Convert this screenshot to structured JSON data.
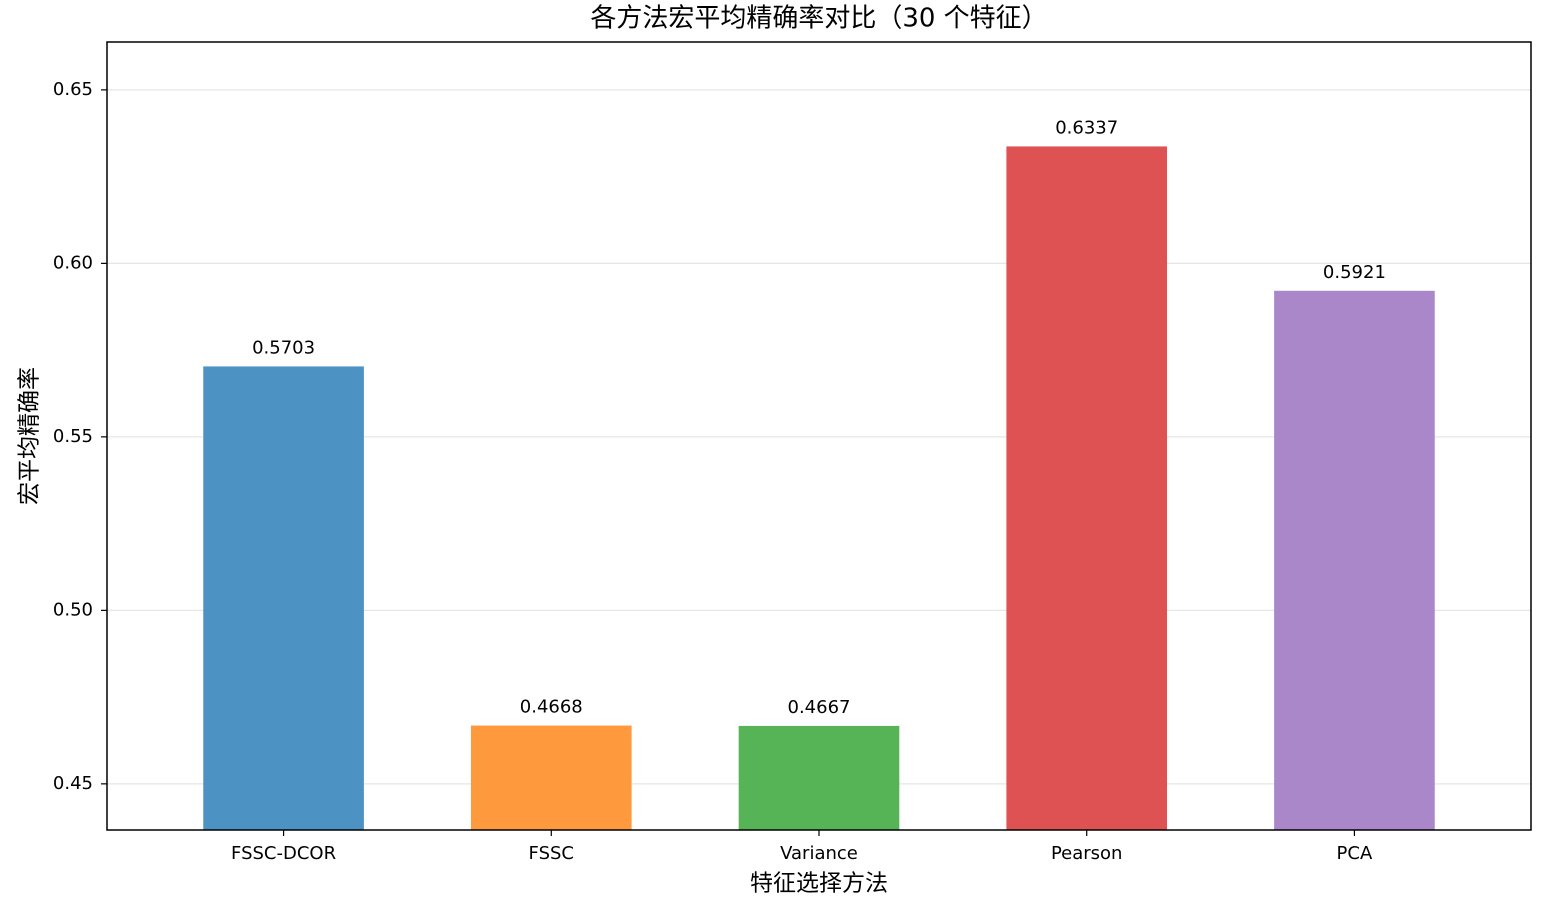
{
  "chart_data": {
    "type": "bar",
    "title": "各方法宏平均精确率对比（30 个特征）",
    "xlabel": "特征选择方法",
    "ylabel": "宏平均精确率",
    "categories": [
      "FSSC-DCOR",
      "FSSC",
      "Variance",
      "Pearson",
      "PCA"
    ],
    "values": [
      0.5703,
      0.4668,
      0.4667,
      0.6337,
      0.5921
    ],
    "colors": [
      "#4c92c3",
      "#ff993e",
      "#56b356",
      "#de5253",
      "#a987c9"
    ],
    "ylim": [
      0.4367,
      0.6638
    ],
    "yticks": [
      0.45,
      {
        "value": 0.5,
        "label": "0.50"
      },
      0.55,
      {
        "value": 0.6,
        "label": "0.60"
      },
      0.65
    ],
    "grid": true
  }
}
